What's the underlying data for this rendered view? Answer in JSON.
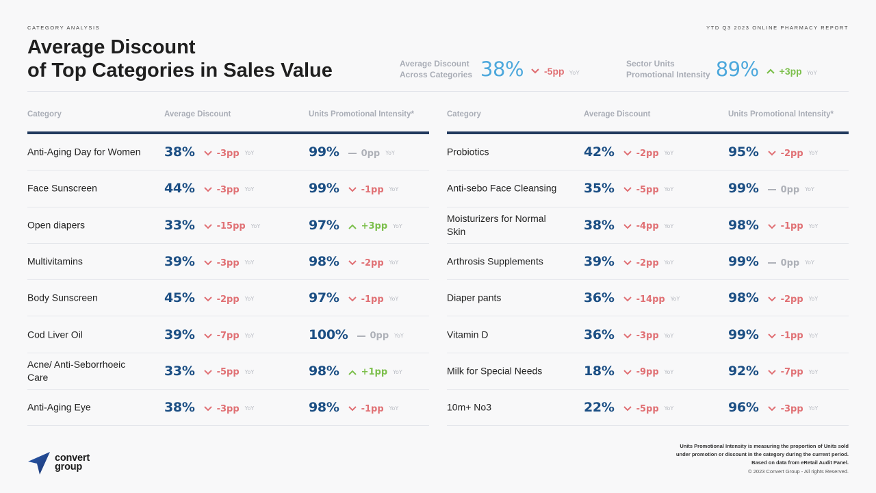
{
  "header": {
    "eyebrow_left": "CATEGORY ANALYSIS",
    "eyebrow_right": "YTD Q3 2023 ONLINE PHARMACY REPORT",
    "title_line1": "Average Discount",
    "title_line2": "of Top Categories in Sales Value"
  },
  "kpis": [
    {
      "label_line1": "Average Discount",
      "label_line2": "Across Categories",
      "value": "38%",
      "delta": "-5pp",
      "direction": "down",
      "yoy": "YoY"
    },
    {
      "label_line1": "Sector Units",
      "label_line2": "Promotional Intensity",
      "value": "89%",
      "delta": "+3pp",
      "direction": "up",
      "yoy": "YoY"
    }
  ],
  "columns": {
    "category": "Category",
    "avg_discount": "Average Discount",
    "promo_intensity": "Units Promotional Intensity*"
  },
  "colors": {
    "up": "#7cbf4c",
    "down": "#e07074",
    "flat": "#aeb1b8",
    "value": "#1c4f84",
    "kpi_value": "#4da8dc",
    "rule": "#223a5e"
  },
  "left_table": [
    {
      "category": "Anti-Aging Day for Women",
      "discount": "38%",
      "discount_delta": "-3pp",
      "discount_dir": "down",
      "intensity": "99%",
      "intensity_delta": "0pp",
      "intensity_dir": "flat"
    },
    {
      "category": "Face Sunscreen",
      "discount": "44%",
      "discount_delta": "-3pp",
      "discount_dir": "down",
      "intensity": "99%",
      "intensity_delta": "-1pp",
      "intensity_dir": "down"
    },
    {
      "category": "Open diapers",
      "discount": "33%",
      "discount_delta": "-15pp",
      "discount_dir": "down",
      "intensity": "97%",
      "intensity_delta": "+3pp",
      "intensity_dir": "up"
    },
    {
      "category": "Multivitamins",
      "discount": "39%",
      "discount_delta": "-3pp",
      "discount_dir": "down",
      "intensity": "98%",
      "intensity_delta": "-2pp",
      "intensity_dir": "down"
    },
    {
      "category": "Body Sunscreen",
      "discount": "45%",
      "discount_delta": "-2pp",
      "discount_dir": "down",
      "intensity": "97%",
      "intensity_delta": "-1pp",
      "intensity_dir": "down"
    },
    {
      "category": "Cod Liver Oil",
      "discount": "39%",
      "discount_delta": "-7pp",
      "discount_dir": "down",
      "intensity": "100%",
      "intensity_delta": "0pp",
      "intensity_dir": "flat"
    },
    {
      "category": "Acne/ Anti-Seborrhoeic Care",
      "discount": "33%",
      "discount_delta": "-5pp",
      "discount_dir": "down",
      "intensity": "98%",
      "intensity_delta": "+1pp",
      "intensity_dir": "up"
    },
    {
      "category": "Anti-Aging Eye",
      "discount": "38%",
      "discount_delta": "-3pp",
      "discount_dir": "down",
      "intensity": "98%",
      "intensity_delta": "-1pp",
      "intensity_dir": "down"
    }
  ],
  "right_table": [
    {
      "category": "Probiotics",
      "discount": "42%",
      "discount_delta": "-2pp",
      "discount_dir": "down",
      "intensity": "95%",
      "intensity_delta": "-2pp",
      "intensity_dir": "down"
    },
    {
      "category": "Anti-sebo Face Cleansing",
      "discount": "35%",
      "discount_delta": "-5pp",
      "discount_dir": "down",
      "intensity": "99%",
      "intensity_delta": "0pp",
      "intensity_dir": "flat"
    },
    {
      "category": "Moisturizers for Normal Skin",
      "discount": "38%",
      "discount_delta": "-4pp",
      "discount_dir": "down",
      "intensity": "98%",
      "intensity_delta": "-1pp",
      "intensity_dir": "down"
    },
    {
      "category": "Arthrosis Supplements",
      "discount": "39%",
      "discount_delta": "-2pp",
      "discount_dir": "down",
      "intensity": "99%",
      "intensity_delta": "0pp",
      "intensity_dir": "flat"
    },
    {
      "category": "Diaper pants",
      "discount": "36%",
      "discount_delta": "-14pp",
      "discount_dir": "down",
      "intensity": "98%",
      "intensity_delta": "-2pp",
      "intensity_dir": "down"
    },
    {
      "category": "Vitamin D",
      "discount": "36%",
      "discount_delta": "-3pp",
      "discount_dir": "down",
      "intensity": "99%",
      "intensity_delta": "-1pp",
      "intensity_dir": "down"
    },
    {
      "category": "Milk for Special Needs",
      "discount": "18%",
      "discount_delta": "-9pp",
      "discount_dir": "down",
      "intensity": "92%",
      "intensity_delta": "-7pp",
      "intensity_dir": "down"
    },
    {
      "category": "10m+ No3",
      "discount": "22%",
      "discount_delta": "-5pp",
      "discount_dir": "down",
      "intensity": "96%",
      "intensity_delta": "-3pp",
      "intensity_dir": "down"
    }
  ],
  "yoy_label": "YoY",
  "logo": {
    "line1": "convert",
    "line2": "group"
  },
  "footnote": {
    "line1": "Units Promotional Intensity is measuring the proportion of Units sold",
    "line2": "under promotion or discount in the category during the current period.",
    "line3": "Based on data from eRetail Audit Panel.",
    "copyright": "© 2023 Convert Group - All rights Reserved."
  }
}
